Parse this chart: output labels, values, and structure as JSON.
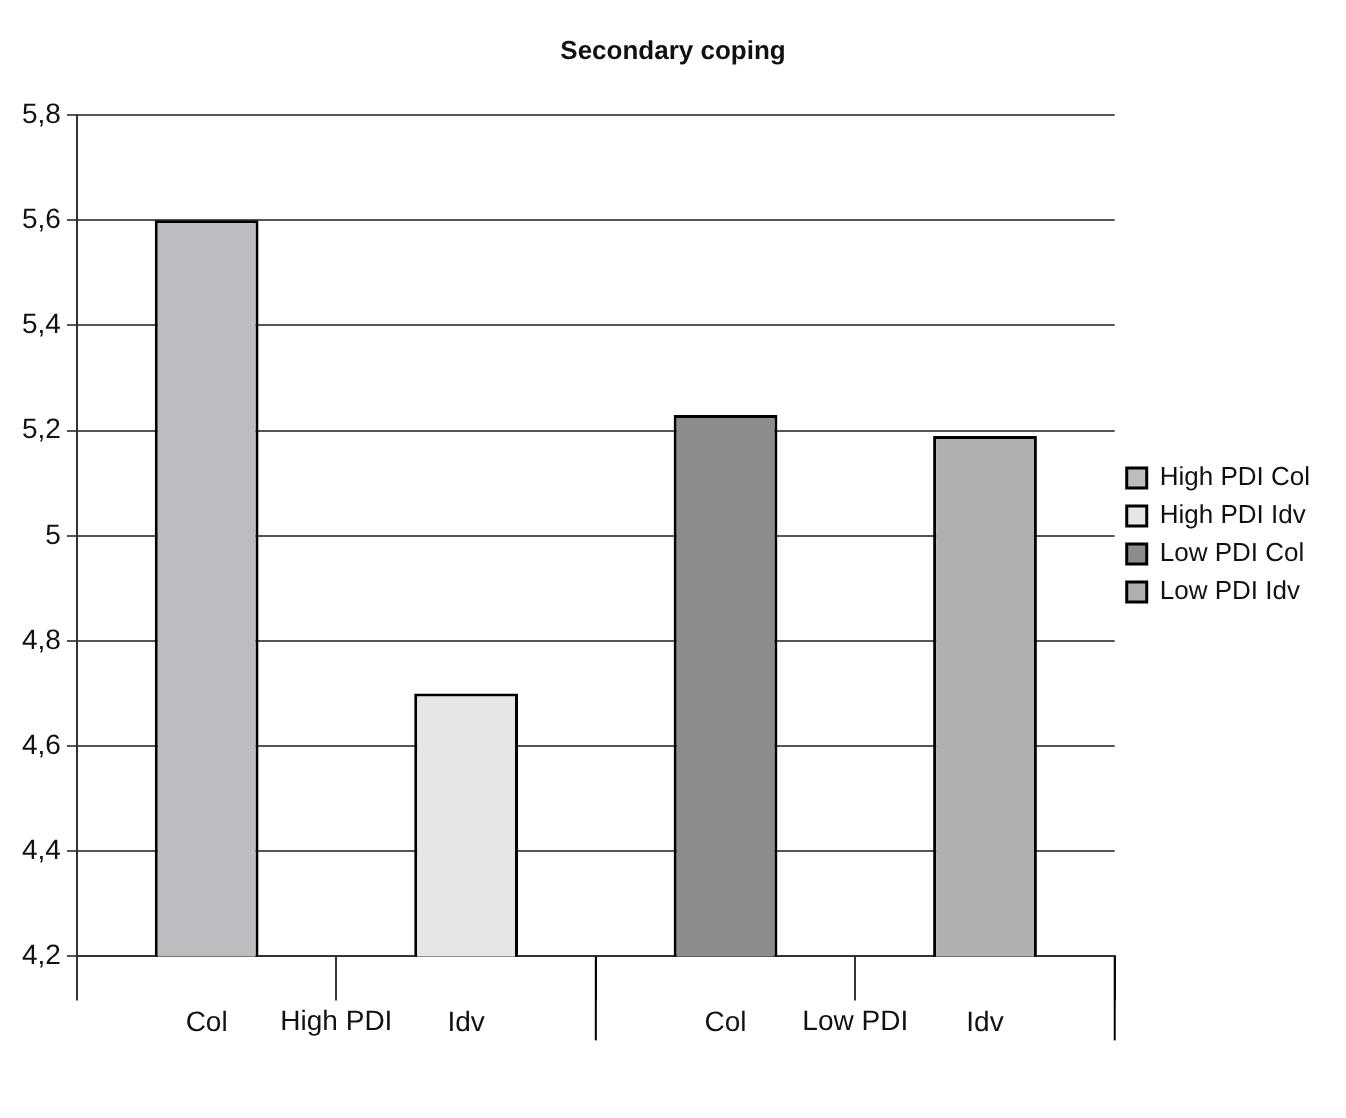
{
  "chart_data": {
    "type": "bar",
    "title": "Secondary coping",
    "categories": [
      "Col",
      "Idv",
      "Col",
      "Idv"
    ],
    "series": [
      {
        "name": "High PDI Col",
        "color": "#bcbdc1",
        "values": [
          5.6,
          null,
          null,
          null
        ]
      },
      {
        "name": "High PDI Idv",
        "color": "#e6e6e6",
        "values": [
          null,
          4.7,
          null,
          null
        ]
      },
      {
        "name": "Low PDI Col",
        "color": "#8c8c8c",
        "values": [
          null,
          null,
          5.23,
          null
        ]
      },
      {
        "name": "Low PDI Idv",
        "color": "#b0b0b0",
        "values": [
          null,
          null,
          null,
          5.19
        ]
      }
    ],
    "annotations": [
      "High PDI",
      "Low PDI"
    ],
    "ylim": [
      4.2,
      5.8
    ],
    "yticks": [
      {
        "value": 4.2,
        "label": "4,2"
      },
      {
        "value": 4.4,
        "label": "4,4"
      },
      {
        "value": 4.6,
        "label": "4,6"
      },
      {
        "value": 4.8,
        "label": "4,8"
      },
      5,
      {
        "value": 5.2,
        "label": "5,2"
      },
      {
        "value": 5.4,
        "label": "5,4"
      },
      {
        "value": 5.6,
        "label": "5,6"
      },
      {
        "value": 5.8,
        "label": "5,8"
      }
    ],
    "grid": "y",
    "legend": "right"
  }
}
